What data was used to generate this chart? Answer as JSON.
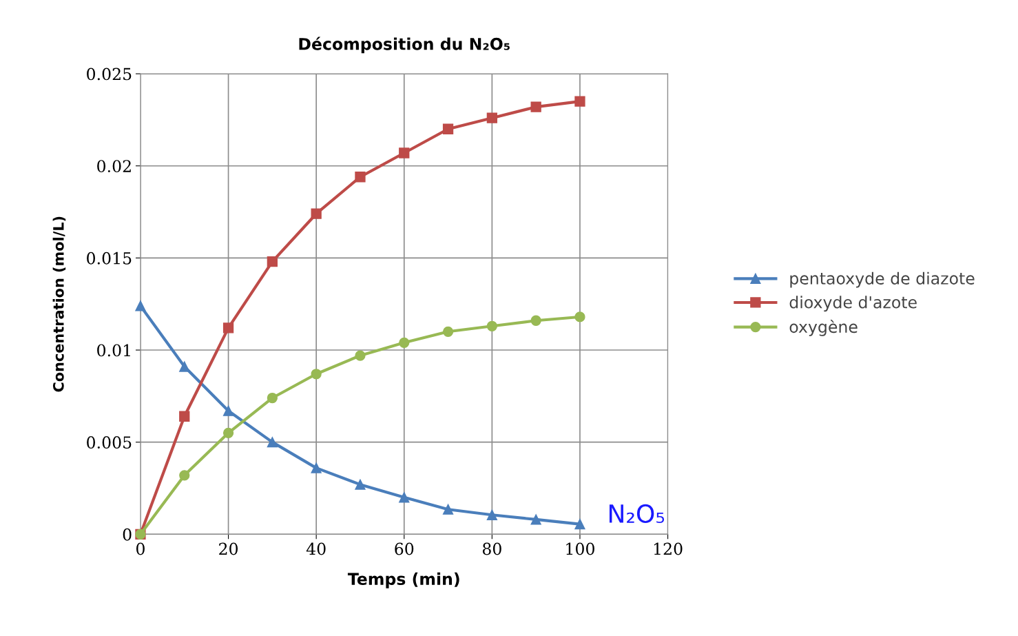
{
  "chart_data": {
    "type": "line",
    "title": "Décomposition du N₂O₅",
    "xlabel": "Temps (min)",
    "ylabel": "Concentration (mol/L)",
    "x": [
      0,
      10,
      20,
      30,
      40,
      50,
      60,
      70,
      80,
      90,
      100
    ],
    "series": [
      {
        "name": "pentaoxyde de diazote",
        "color": "#4a7ebb",
        "marker": "triangle",
        "values": [
          0.0124,
          0.0091,
          0.0067,
          0.005,
          0.0036,
          0.0027,
          0.002,
          0.00135,
          0.00105,
          0.0008,
          0.00055
        ]
      },
      {
        "name": "dioxyde d'azote",
        "color": "#be4b48",
        "marker": "square",
        "values": [
          0,
          0.0064,
          0.0112,
          0.0148,
          0.0174,
          0.0194,
          0.0207,
          0.022,
          0.0226,
          0.0232,
          0.0235
        ]
      },
      {
        "name": "oxygène",
        "color": "#98b954",
        "marker": "circle",
        "values": [
          0,
          0.0032,
          0.0055,
          0.0074,
          0.0087,
          0.0097,
          0.0104,
          0.011,
          0.0113,
          0.0116,
          0.0118
        ]
      }
    ],
    "xlim": [
      0,
      120
    ],
    "xticks": [
      0,
      20,
      40,
      60,
      80,
      100,
      120
    ],
    "ylim": [
      0,
      0.025
    ],
    "yticks": [
      0,
      0.005,
      0.01,
      0.015,
      0.02,
      0.025
    ],
    "grid": true,
    "legend": "right",
    "annotations": [
      "N₂O₅"
    ]
  }
}
